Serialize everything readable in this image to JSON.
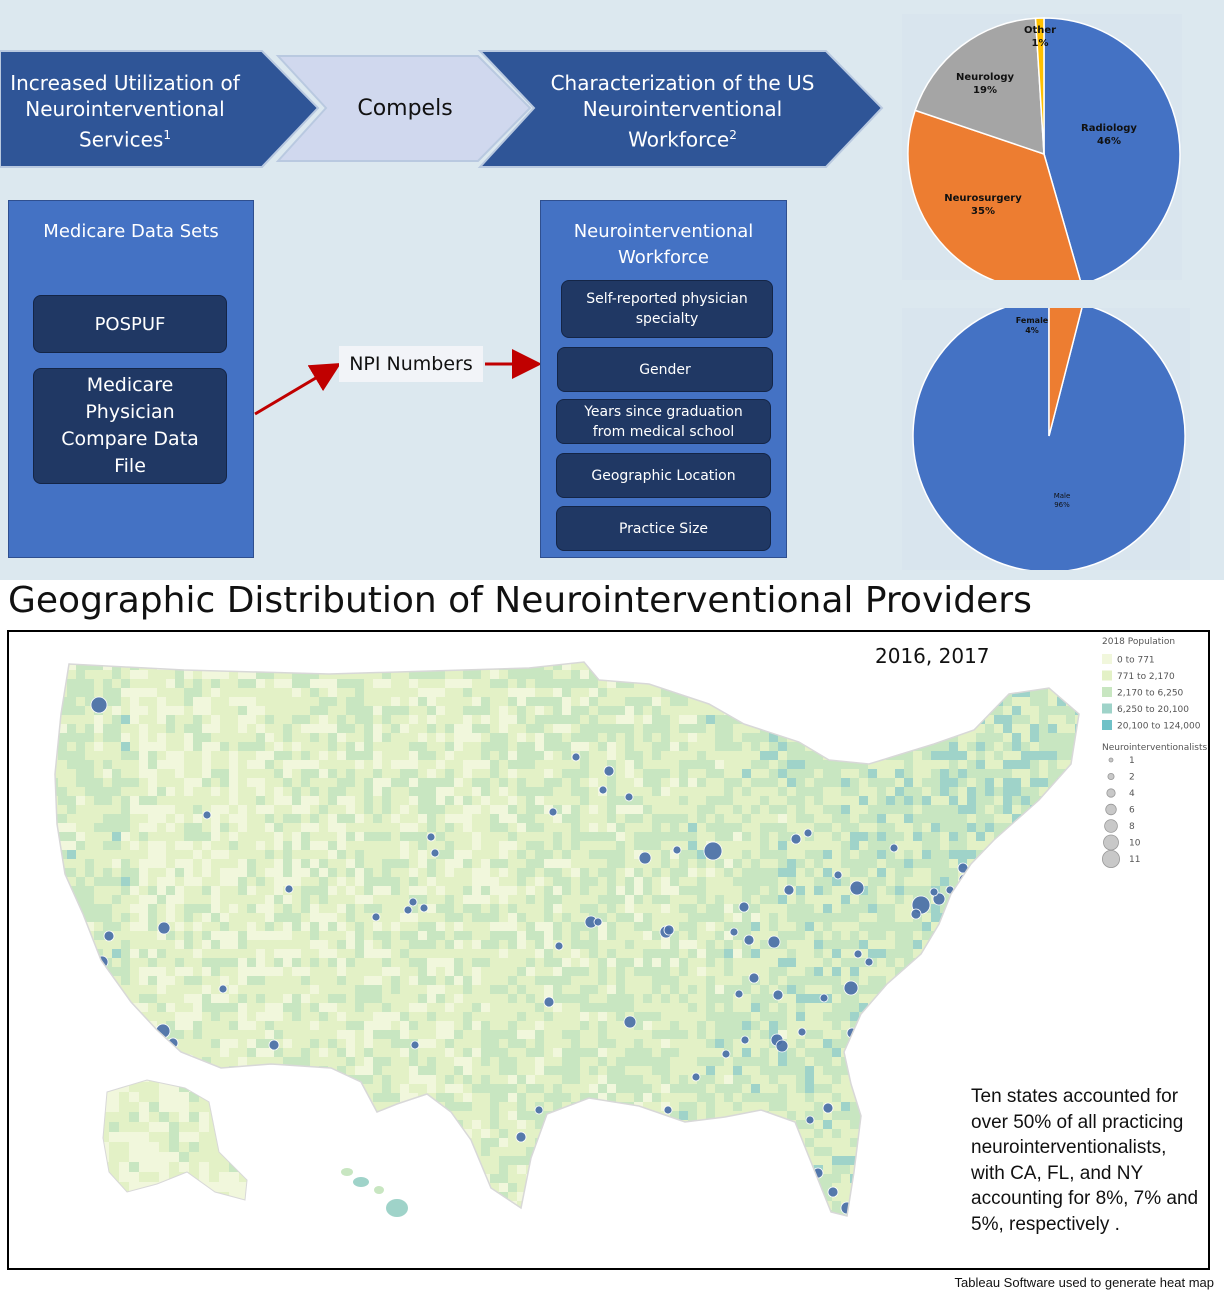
{
  "flow": {
    "step1": [
      "Increased Utilization of",
      "Neurointerventional",
      "Services"
    ],
    "step1_sup": "1",
    "step2": "Compels",
    "step3": [
      "Characterization of the US",
      "Neurointerventional",
      "Workforce"
    ],
    "step3_sup": "2"
  },
  "data_sources": {
    "title": "Medicare Data Sets",
    "items": [
      "POSPUF",
      "Medicare Physician Compare Data File"
    ]
  },
  "connector": {
    "label": "NPI Numbers"
  },
  "workforce": {
    "title": "Neurointerventional Workforce",
    "items": [
      "Self-reported physician specialty",
      "Gender",
      "Years since graduation from medical school",
      "Geographic Location",
      "Practice Size"
    ]
  },
  "chart_data": [
    {
      "type": "pie",
      "slices": [
        {
          "label": "Radiology",
          "value": 46,
          "display": "46%",
          "color": "#4472c4"
        },
        {
          "label": "Neurosurgery",
          "value": 35,
          "display": "35%",
          "color": "#ed7d31"
        },
        {
          "label": "Neurology",
          "value": 19,
          "display": "19%",
          "color": "#a5a5a5"
        },
        {
          "label": "Other",
          "value": 1,
          "display": "1%",
          "color": "#ffc000"
        }
      ]
    },
    {
      "type": "pie",
      "slices": [
        {
          "label": "Male",
          "value": 96,
          "display": "96%",
          "color": "#4472c4"
        },
        {
          "label": "Female",
          "value": 4,
          "display": "4%",
          "color": "#ed7d31"
        }
      ]
    }
  ],
  "map": {
    "title": "Geographic Distribution of Neurointerventional Providers",
    "years": "2016, 2017",
    "legend_population": {
      "title": "2018 Population",
      "items": [
        {
          "label": "0 to 771",
          "color": "#f1f7dc"
        },
        {
          "label": "771 to 2,170",
          "color": "#e3f1c6"
        },
        {
          "label": "2,170 to 6,250",
          "color": "#c8e6c1"
        },
        {
          "label": "6,250 to 20,100",
          "color": "#9fd3c9"
        },
        {
          "label": "20,100 to 124,000",
          "color": "#6fc1c7"
        }
      ]
    },
    "legend_size": {
      "title": "Neurointerventionalists",
      "items": [
        "1",
        "2",
        "4",
        "6",
        "8",
        "10",
        "11"
      ]
    },
    "note": [
      "Ten states accounted for",
      "over 50% of all practicing",
      "neurointerventionalists,",
      "with CA, FL, and NY",
      "accounting for 8%, 7% and",
      "5%, respectively ."
    ]
  },
  "footnote": "Tableau Software used to generate heat map"
}
